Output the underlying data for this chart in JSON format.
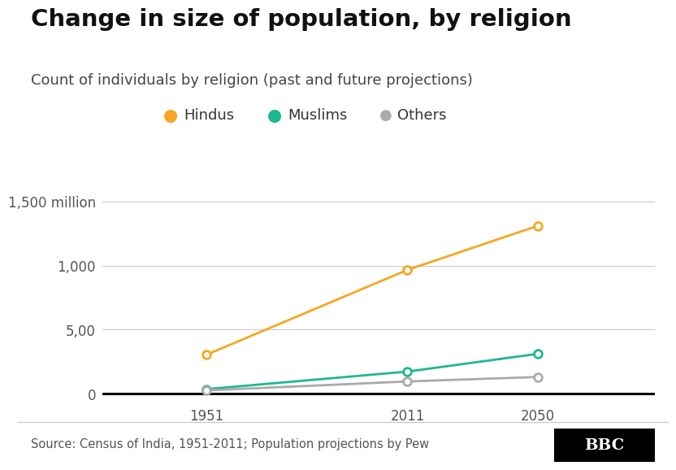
{
  "title": "Change in size of population, by religion",
  "subtitle": "Count of individuals by religion (past and future projections)",
  "source": "Source: Census of India, 1951-2011; Population projections by Pew",
  "bbc_label": "BBC",
  "years": [
    1951,
    2011,
    2050
  ],
  "hindus": [
    304,
    966,
    1311
  ],
  "muslims": [
    35,
    172,
    311
  ],
  "others": [
    25,
    95,
    130
  ],
  "color_hindus": "#F5A623",
  "color_muslims": "#1DB88E",
  "color_others": "#AAAAAA",
  "yticks": [
    0,
    500,
    1000,
    1500
  ],
  "ytick_labels": [
    "0",
    "5,00",
    "1,000",
    "1,500 million"
  ],
  "ylim": [
    -60,
    1650
  ],
  "xlim": [
    1920,
    2085
  ],
  "background_color": "#FFFFFF",
  "title_fontsize": 21,
  "subtitle_fontsize": 13,
  "legend_fontsize": 13,
  "tick_fontsize": 12,
  "source_fontsize": 10.5,
  "marker_size": 7,
  "line_width": 2.0
}
